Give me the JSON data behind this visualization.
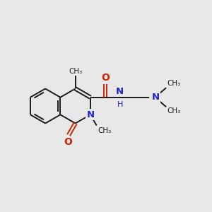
{
  "bg_color": "#e8e8e8",
  "bond_color": "#1a1a1a",
  "N_color": "#2222cc",
  "O_color": "#cc2200",
  "lw": 1.4,
  "figsize": [
    3.0,
    3.0
  ],
  "dpi": 100,
  "xlim": [
    0,
    12
  ],
  "ylim": [
    1,
    10
  ]
}
